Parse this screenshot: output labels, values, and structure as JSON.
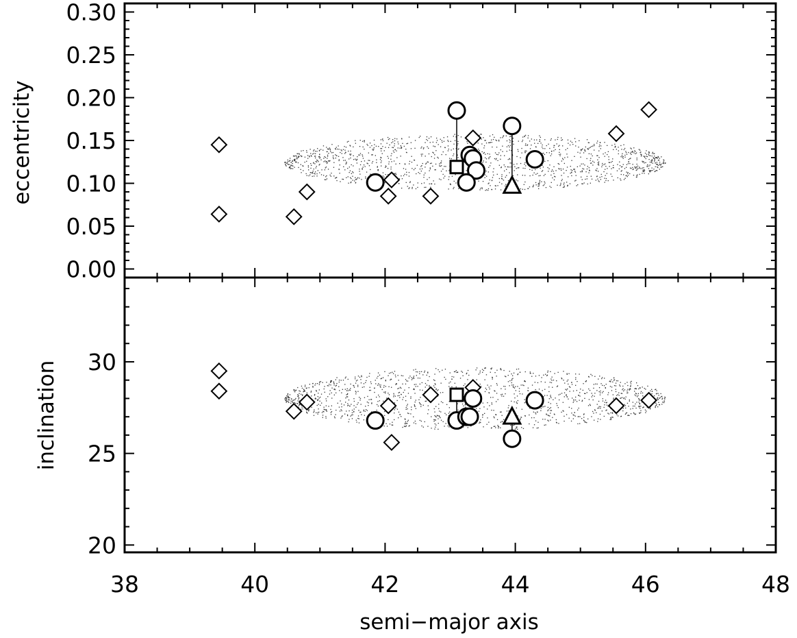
{
  "chart_data": [
    {
      "type": "scatter",
      "panel": "top",
      "xlabel": "",
      "ylabel": "eccentricity",
      "xlim": [
        38,
        48
      ],
      "ylim": [
        -0.01,
        0.31
      ],
      "yticks": [
        0.0,
        0.05,
        0.1,
        0.15,
        0.2,
        0.25,
        0.3
      ],
      "ytick_labels": [
        "0.00",
        "0.05",
        "0.10",
        "0.15",
        "0.20",
        "0.25",
        "0.30"
      ],
      "region": {
        "name": "stable region (dots)",
        "x_range": [
          40.45,
          46.3
        ],
        "y_center": 0.125,
        "y_halfheight_peak": 0.033
      },
      "series": [
        {
          "marker": "diamond",
          "points": [
            [
              39.45,
              0.145
            ],
            [
              39.45,
              0.064
            ],
            [
              40.6,
              0.061
            ],
            [
              40.8,
              0.09
            ],
            [
              42.05,
              0.085
            ],
            [
              42.1,
              0.104
            ],
            [
              42.7,
              0.085
            ],
            [
              43.35,
              0.153
            ],
            [
              45.55,
              0.158
            ],
            [
              46.05,
              0.186
            ]
          ]
        },
        {
          "marker": "circle",
          "points": [
            [
              43.1,
              0.185
            ],
            [
              43.95,
              0.167
            ],
            [
              43.3,
              0.133
            ],
            [
              43.35,
              0.129
            ],
            [
              43.4,
              0.115
            ],
            [
              43.25,
              0.101
            ],
            [
              41.85,
              0.101
            ],
            [
              44.3,
              0.128
            ]
          ]
        },
        {
          "marker": "square",
          "points": [
            [
              43.1,
              0.119
            ]
          ]
        },
        {
          "marker": "triangle",
          "points": [
            [
              43.95,
              0.097
            ]
          ]
        },
        {
          "marker": "connector",
          "segments": [
            [
              [
                43.1,
                0.185
              ],
              [
                43.1,
                0.119
              ]
            ],
            [
              [
                43.95,
                0.167
              ],
              [
                43.95,
                0.097
              ]
            ]
          ]
        }
      ]
    },
    {
      "type": "scatter",
      "panel": "bottom",
      "xlabel": "semi−major axis",
      "ylabel": "inclination",
      "xlim": [
        38,
        48
      ],
      "ylim": [
        19.6,
        34.6
      ],
      "xticks": [
        38,
        40,
        42,
        44,
        46,
        48
      ],
      "xtick_labels": [
        "38",
        "40",
        "42",
        "44",
        "46",
        "48"
      ],
      "yticks": [
        20,
        25,
        30
      ],
      "ytick_labels": [
        "20",
        "25",
        "30"
      ],
      "region": {
        "name": "stable region (dots)",
        "x_range": [
          40.45,
          46.3
        ],
        "y_center": 28.0,
        "y_halfheight_peak": 1.7
      },
      "series": [
        {
          "marker": "diamond",
          "points": [
            [
              39.45,
              29.5
            ],
            [
              39.45,
              28.4
            ],
            [
              40.6,
              27.3
            ],
            [
              40.8,
              27.8
            ],
            [
              42.05,
              27.6
            ],
            [
              42.1,
              25.6
            ],
            [
              42.7,
              28.2
            ],
            [
              43.35,
              28.6
            ],
            [
              45.55,
              27.6
            ],
            [
              46.05,
              27.9
            ]
          ]
        },
        {
          "marker": "circle",
          "points": [
            [
              41.85,
              26.8
            ],
            [
              43.1,
              26.8
            ],
            [
              43.25,
              27.0
            ],
            [
              43.3,
              27.0
            ],
            [
              43.35,
              28.0
            ],
            [
              44.3,
              27.9
            ],
            [
              43.95,
              25.8
            ]
          ]
        },
        {
          "marker": "square",
          "points": [
            [
              43.1,
              28.2
            ]
          ]
        },
        {
          "marker": "triangle",
          "points": [
            [
              43.95,
              27.0
            ]
          ]
        },
        {
          "marker": "connector",
          "segments": [
            [
              [
                43.1,
                28.2
              ],
              [
                43.1,
                26.8
              ]
            ],
            [
              [
                43.95,
                27.0
              ],
              [
                43.95,
                25.8
              ]
            ]
          ]
        }
      ]
    }
  ]
}
